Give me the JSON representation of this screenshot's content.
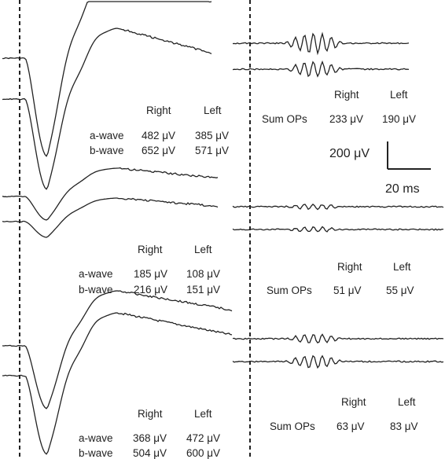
{
  "panels": [
    {
      "erg": {
        "col_right": "Right",
        "col_left": "Left",
        "a_label": "a-wave",
        "a_right": "482 μV",
        "a_left": "385 μV",
        "b_label": "b-wave",
        "b_right": "652 μV",
        "b_left": "571 μV"
      },
      "ops": {
        "col_right": "Right",
        "col_left": "Left",
        "label": "Sum OPs",
        "right": "233 μV",
        "left": "190 μV"
      },
      "trace_params": {
        "a_depth": [
          125,
          115
        ],
        "b_rise": [
          110,
          90
        ],
        "ops_amp": [
          13,
          10
        ]
      }
    },
    {
      "erg": {
        "col_right": "Right",
        "col_left": "Left",
        "a_label": "a-wave",
        "a_right": "185 μV",
        "a_left": "108 μV",
        "b_label": "b-wave",
        "b_right": "216 μV",
        "b_left": "151 μV"
      },
      "ops": {
        "col_right": "Right",
        "col_left": "Left",
        "label": "Sum OPs",
        "right": "51 μV",
        "left": "55 μV"
      },
      "trace_params": {
        "a_depth": [
          30,
          20
        ],
        "b_rise": [
          36,
          30
        ],
        "ops_amp": [
          3,
          3
        ]
      }
    },
    {
      "erg": {
        "col_right": "Right",
        "col_left": "Left",
        "a_label": "a-wave",
        "a_right": "368 μV",
        "a_left": "472 μV",
        "b_label": "b-wave",
        "b_right": "504 μV",
        "b_left": "600 μV"
      },
      "ops": {
        "col_right": "Right",
        "col_left": "Left",
        "label": "Sum OPs",
        "right": "63 μV",
        "left": "83 μV"
      },
      "trace_params": {
        "a_depth": [
          80,
          100
        ],
        "b_rise": [
          70,
          80
        ],
        "ops_amp": [
          6,
          8
        ]
      }
    }
  ],
  "scale_bar": {
    "amplitude": "200 μV",
    "time": "20 ms"
  },
  "colors": {
    "trace": "#222222",
    "divider": "#222222"
  }
}
